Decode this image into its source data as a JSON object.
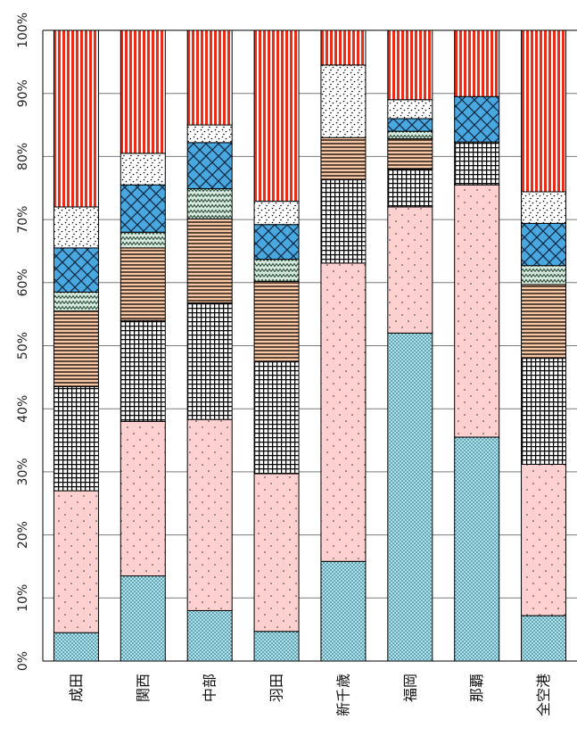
{
  "chart_data": {
    "type": "bar",
    "stacked": true,
    "percent": true,
    "orientation": "vertical",
    "categories": [
      "成田",
      "関西",
      "中部",
      "羽田",
      "新千歳",
      "福岡",
      "那覇",
      "全空港"
    ],
    "y_ticks": [
      "0%",
      "10%",
      "20%",
      "30%",
      "40%",
      "50%",
      "60%",
      "70%",
      "80%",
      "90%",
      "100%"
    ],
    "ylim": [
      0,
      100
    ],
    "grid": "horizontal",
    "legend": "none",
    "series": [
      {
        "pattern": "dense-dots",
        "fill": "#a8e4f0",
        "values": [
          4.5,
          13.5,
          8,
          4.7,
          15.8,
          52,
          35.5,
          7.2
        ]
      },
      {
        "pattern": "sparse-dots",
        "fill": "#ffd0d0",
        "values": [
          22.5,
          24.5,
          30.3,
          25,
          47.3,
          20,
          40,
          24
        ]
      },
      {
        "pattern": "grid",
        "fill": "#ffffff",
        "values": [
          16.5,
          16,
          18.5,
          17.8,
          13.2,
          6,
          6.8,
          16.8
        ]
      },
      {
        "pattern": "horizontal-lines",
        "fill": "#f7c9a8",
        "values": [
          12,
          11.5,
          13.3,
          12.7,
          6.7,
          4.8,
          0,
          11.7
        ]
      },
      {
        "pattern": "zigzag",
        "fill": "#d8ecdf",
        "values": [
          3,
          2.5,
          4.8,
          3.5,
          0,
          1.2,
          0,
          3
        ]
      },
      {
        "pattern": "cross-hatch",
        "fill": "#4aa8e0",
        "values": [
          7,
          7.5,
          7.3,
          5.5,
          0,
          2,
          7.2,
          6.7
        ]
      },
      {
        "pattern": "scatter-dots",
        "fill": "#ffffff",
        "values": [
          6.5,
          5,
          2.8,
          3.7,
          11.5,
          3,
          0,
          5
        ]
      },
      {
        "pattern": "vertical-stripes",
        "fill": "#ee2b16",
        "values": [
          28,
          19.5,
          15,
          27.1,
          5.5,
          11,
          10.5,
          25.6
        ]
      }
    ]
  }
}
